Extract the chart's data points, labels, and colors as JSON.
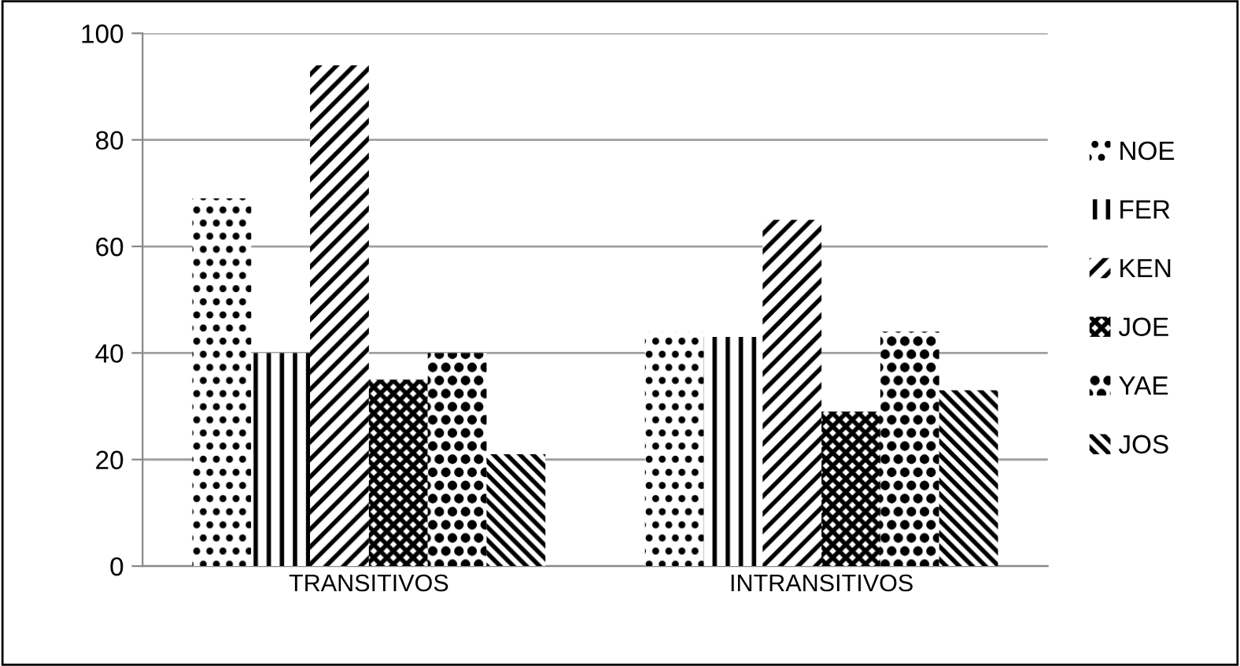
{
  "chart_data": {
    "type": "bar",
    "categories": [
      "TRANSITIVOS",
      "INTRANSITIVOS"
    ],
    "series": [
      {
        "name": "NOE",
        "color": "#000000",
        "values": [
          69,
          44
        ]
      },
      {
        "name": "FER",
        "color": "#000000",
        "values": [
          40,
          43
        ]
      },
      {
        "name": "KEN",
        "color": "#000000",
        "values": [
          94,
          65
        ]
      },
      {
        "name": "JOE",
        "color": "#000000",
        "values": [
          35,
          29
        ]
      },
      {
        "name": "YAE",
        "color": "#000000",
        "values": [
          40,
          44
        ]
      },
      {
        "name": "JOS",
        "color": "#000000",
        "values": [
          21,
          33
        ]
      }
    ],
    "ylim": [
      0,
      100
    ],
    "yticks": [
      0,
      20,
      40,
      60,
      80,
      100
    ],
    "grid": "y",
    "legend": "right"
  }
}
